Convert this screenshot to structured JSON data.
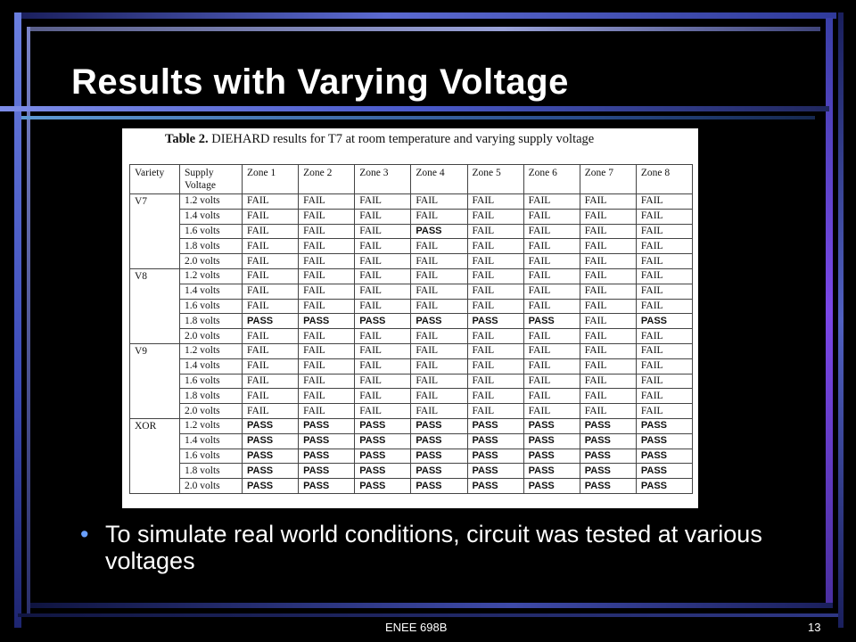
{
  "slide": {
    "title": "Results with Varying Voltage",
    "bullet": "To simulate real world conditions, circuit was tested at various voltages",
    "footer": "ENEE 698B",
    "page_number": "13",
    "accent_colors": [
      "#5b6ad0",
      "#7b47e8",
      "#6aa0ff"
    ]
  },
  "table_image": {
    "caption_bold": "Table 2.",
    "caption_text": " DIEHARD results for T7 at room temperature and varying supply voltage",
    "headers": [
      "Variety",
      "Supply Voltage",
      "Zone 1",
      "Zone 2",
      "Zone 3",
      "Zone 4",
      "Zone 5",
      "Zone 6",
      "Zone 7",
      "Zone 8"
    ],
    "groups": [
      {
        "variety": "V7",
        "rows": [
          {
            "voltage": "1.2 volts",
            "zones": [
              "FAIL",
              "FAIL",
              "FAIL",
              "FAIL",
              "FAIL",
              "FAIL",
              "FAIL",
              "FAIL"
            ]
          },
          {
            "voltage": "1.4 volts",
            "zones": [
              "FAIL",
              "FAIL",
              "FAIL",
              "FAIL",
              "FAIL",
              "FAIL",
              "FAIL",
              "FAIL"
            ]
          },
          {
            "voltage": "1.6 volts",
            "zones": [
              "FAIL",
              "FAIL",
              "FAIL",
              "PASS",
              "FAIL",
              "FAIL",
              "FAIL",
              "FAIL"
            ]
          },
          {
            "voltage": "1.8 volts",
            "zones": [
              "FAIL",
              "FAIL",
              "FAIL",
              "FAIL",
              "FAIL",
              "FAIL",
              "FAIL",
              "FAIL"
            ]
          },
          {
            "voltage": "2.0 volts",
            "zones": [
              "FAIL",
              "FAIL",
              "FAIL",
              "FAIL",
              "FAIL",
              "FAIL",
              "FAIL",
              "FAIL"
            ]
          }
        ]
      },
      {
        "variety": "V8",
        "rows": [
          {
            "voltage": "1.2 volts",
            "zones": [
              "FAIL",
              "FAIL",
              "FAIL",
              "FAIL",
              "FAIL",
              "FAIL",
              "FAIL",
              "FAIL"
            ]
          },
          {
            "voltage": "1.4 volts",
            "zones": [
              "FAIL",
              "FAIL",
              "FAIL",
              "FAIL",
              "FAIL",
              "FAIL",
              "FAIL",
              "FAIL"
            ]
          },
          {
            "voltage": "1.6 volts",
            "zones": [
              "FAIL",
              "FAIL",
              "FAIL",
              "FAIL",
              "FAIL",
              "FAIL",
              "FAIL",
              "FAIL"
            ]
          },
          {
            "voltage": "1.8 volts",
            "zones": [
              "PASS",
              "PASS",
              "PASS",
              "PASS",
              "PASS",
              "PASS",
              "FAIL",
              "PASS"
            ]
          },
          {
            "voltage": "2.0 volts",
            "zones": [
              "FAIL",
              "FAIL",
              "FAIL",
              "FAIL",
              "FAIL",
              "FAIL",
              "FAIL",
              "FAIL"
            ]
          }
        ]
      },
      {
        "variety": "V9",
        "rows": [
          {
            "voltage": "1.2 volts",
            "zones": [
              "FAIL",
              "FAIL",
              "FAIL",
              "FAIL",
              "FAIL",
              "FAIL",
              "FAIL",
              "FAIL"
            ]
          },
          {
            "voltage": "1.4 volts",
            "zones": [
              "FAIL",
              "FAIL",
              "FAIL",
              "FAIL",
              "FAIL",
              "FAIL",
              "FAIL",
              "FAIL"
            ]
          },
          {
            "voltage": "1.6 volts",
            "zones": [
              "FAIL",
              "FAIL",
              "FAIL",
              "FAIL",
              "FAIL",
              "FAIL",
              "FAIL",
              "FAIL"
            ]
          },
          {
            "voltage": "1.8 volts",
            "zones": [
              "FAIL",
              "FAIL",
              "FAIL",
              "FAIL",
              "FAIL",
              "FAIL",
              "FAIL",
              "FAIL"
            ]
          },
          {
            "voltage": "2.0 volts",
            "zones": [
              "FAIL",
              "FAIL",
              "FAIL",
              "FAIL",
              "FAIL",
              "FAIL",
              "FAIL",
              "FAIL"
            ]
          }
        ]
      },
      {
        "variety": "XOR",
        "rows": [
          {
            "voltage": "1.2 volts",
            "zones": [
              "PASS",
              "PASS",
              "PASS",
              "PASS",
              "PASS",
              "PASS",
              "PASS",
              "PASS"
            ]
          },
          {
            "voltage": "1.4 volts",
            "zones": [
              "PASS",
              "PASS",
              "PASS",
              "PASS",
              "PASS",
              "PASS",
              "PASS",
              "PASS"
            ]
          },
          {
            "voltage": "1.6 volts",
            "zones": [
              "PASS",
              "PASS",
              "PASS",
              "PASS",
              "PASS",
              "PASS",
              "PASS",
              "PASS"
            ]
          },
          {
            "voltage": "1.8 volts",
            "zones": [
              "PASS",
              "PASS",
              "PASS",
              "PASS",
              "PASS",
              "PASS",
              "PASS",
              "PASS"
            ]
          },
          {
            "voltage": "2.0 volts",
            "zones": [
              "PASS",
              "PASS",
              "PASS",
              "PASS",
              "PASS",
              "PASS",
              "PASS",
              "PASS"
            ]
          }
        ]
      }
    ]
  }
}
